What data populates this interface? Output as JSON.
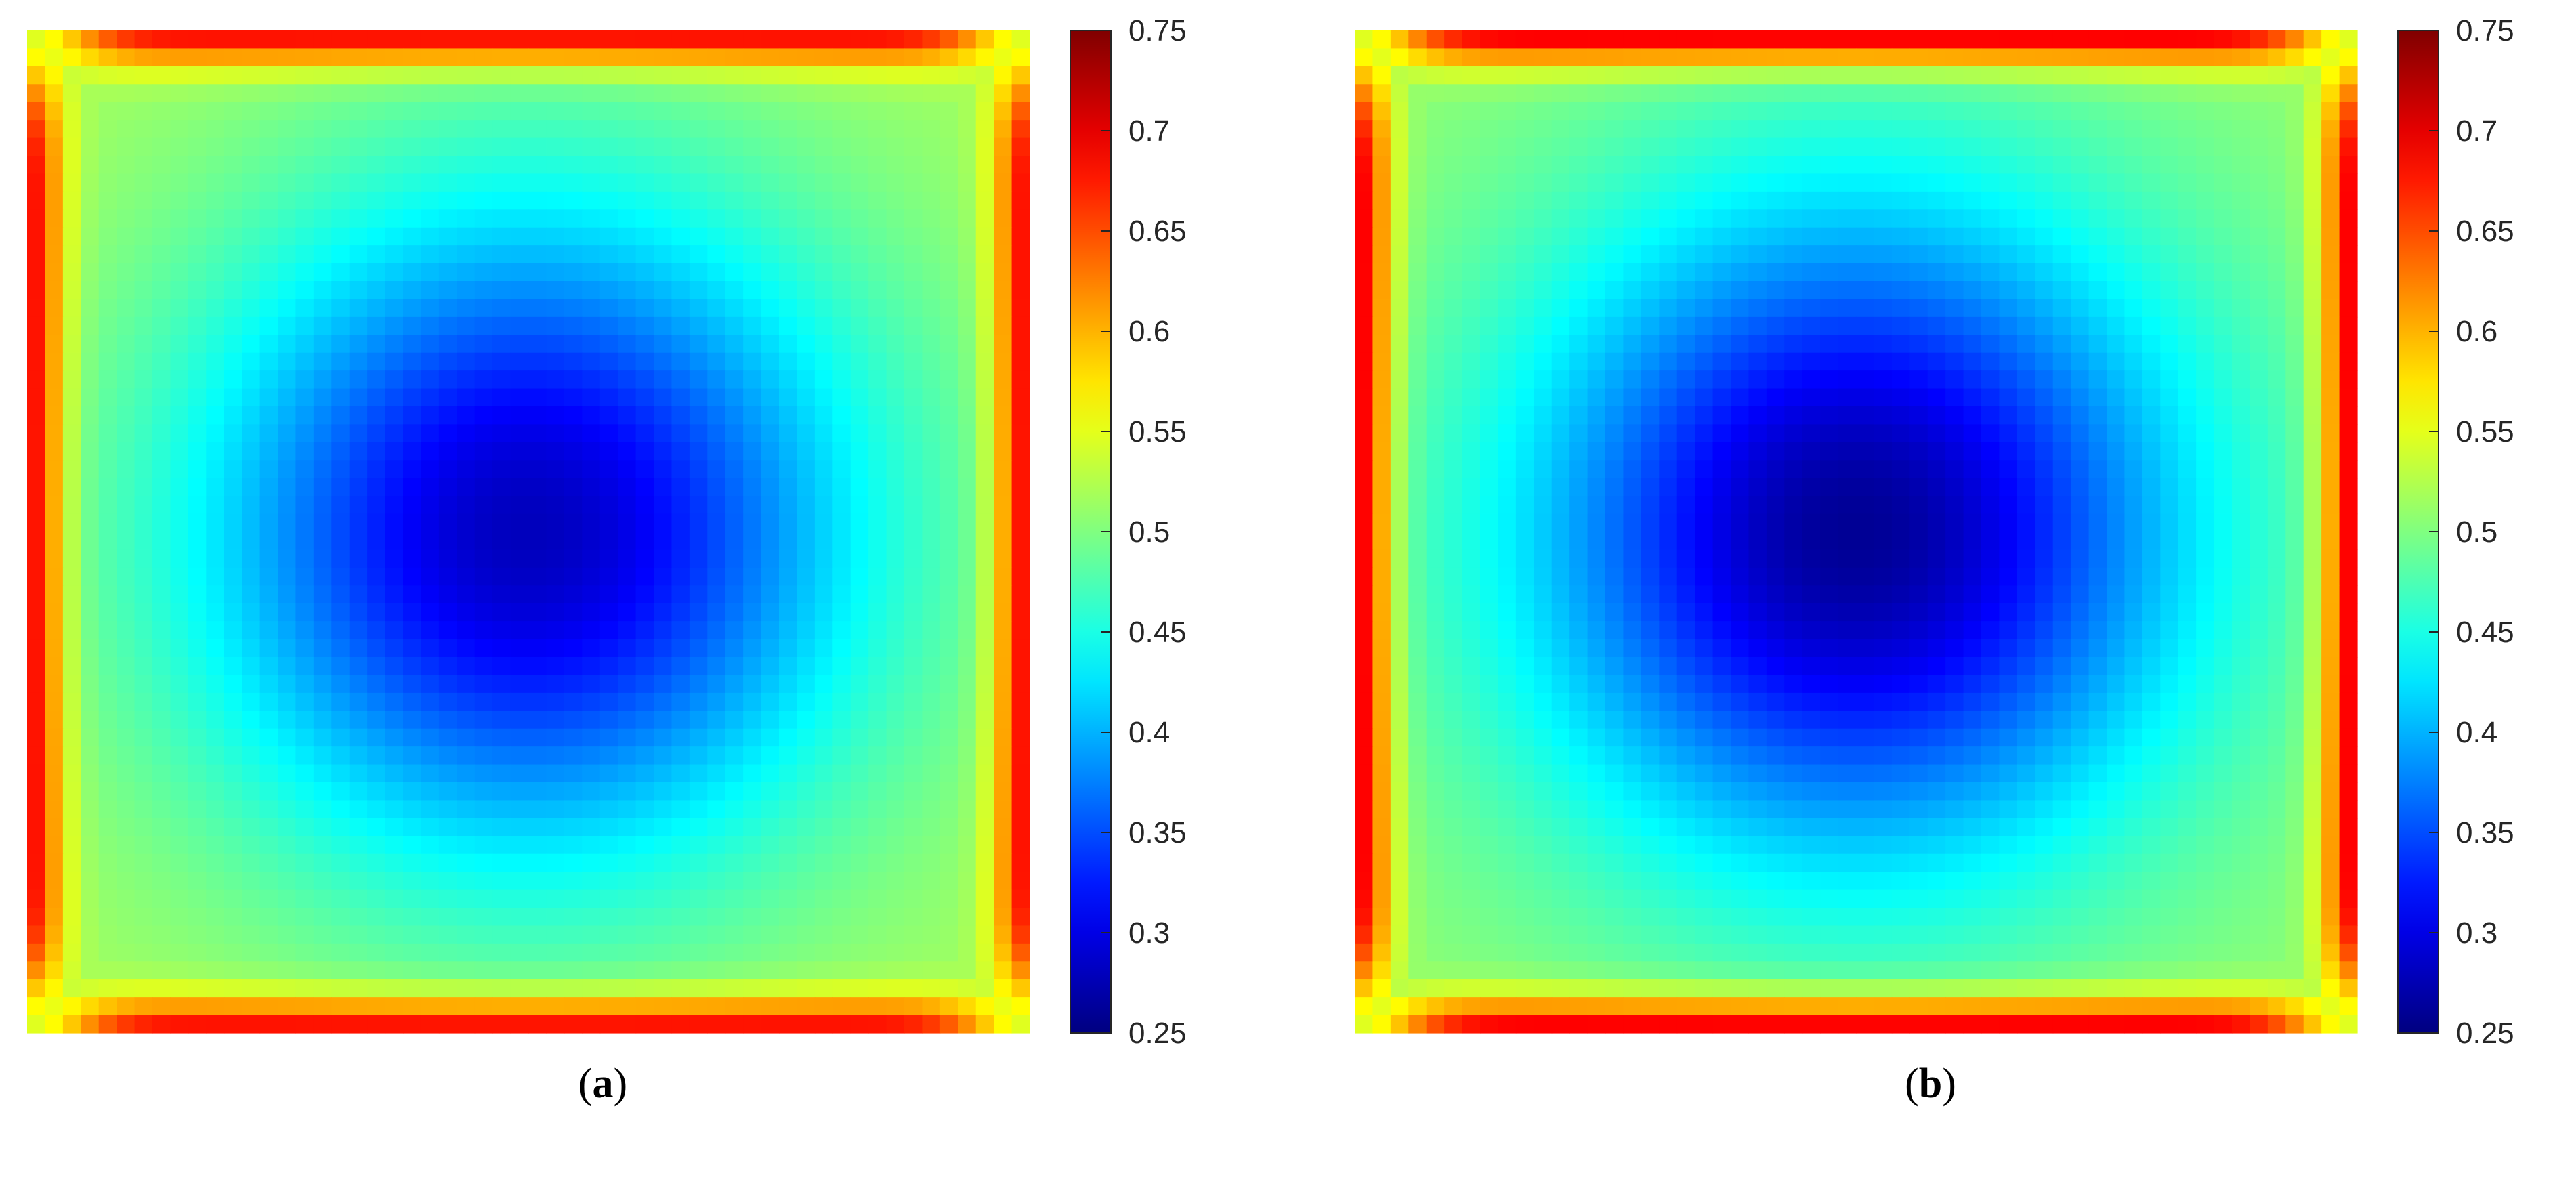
{
  "chart_data": [
    {
      "type": "heatmap",
      "panel_label": "a",
      "grid_size": 56,
      "colormap": "jet",
      "colorbar": {
        "min": 0.25,
        "max": 0.75,
        "ticks": [
          0.25,
          0.3,
          0.35,
          0.4,
          0.45,
          0.5,
          0.55,
          0.6,
          0.65,
          0.7,
          0.75
        ],
        "tick_labels": [
          "0.25",
          "0.3",
          "0.35",
          "0.4",
          "0.45",
          "0.5",
          "0.55",
          "0.6",
          "0.65",
          "0.7",
          "0.75"
        ]
      },
      "field": {
        "center_x": 0.5,
        "center_y": 0.5,
        "center_value": 0.28,
        "plateau_value": 0.52,
        "edge_value": 0.69,
        "corner_value": 0.545
      }
    },
    {
      "type": "heatmap",
      "panel_label": "b",
      "grid_size": 56,
      "colormap": "jet",
      "colorbar": {
        "min": 0.25,
        "max": 0.75,
        "ticks": [
          0.25,
          0.3,
          0.35,
          0.4,
          0.45,
          0.5,
          0.55,
          0.6,
          0.65,
          0.7,
          0.75
        ],
        "tick_labels": [
          "0.25",
          "0.3",
          "0.35",
          "0.4",
          "0.45",
          "0.5",
          "0.55",
          "0.6",
          "0.65",
          "0.7",
          "0.75"
        ]
      },
      "field": {
        "center_x": 0.5,
        "center_y": 0.5,
        "center_value": 0.26,
        "plateau_value": 0.51,
        "edge_value": 0.7,
        "corner_value": 0.545
      }
    }
  ]
}
